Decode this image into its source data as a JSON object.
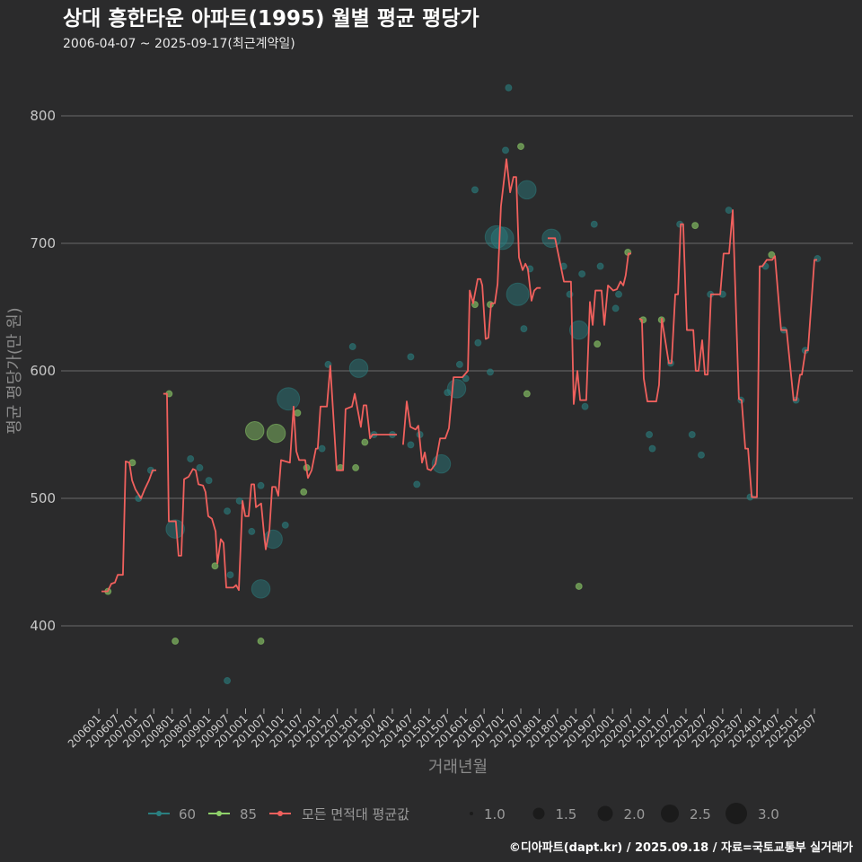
{
  "chart_data": {
    "type": "line",
    "title": "상대 흥한타운 아파트(1995) 월별 평균 평당가",
    "subtitle": "2006-04-07 ~ 2025-09-17(최근계약일)",
    "xlabel": "거래년월",
    "ylabel": "평균 평당가(만 원)",
    "x_unit": "months since 2006-01",
    "ylim": [
      335,
      835
    ],
    "yticks": [
      400,
      500,
      600,
      700,
      800
    ],
    "xticks": [
      "200601",
      "200607",
      "200701",
      "200707",
      "200801",
      "200807",
      "200901",
      "200907",
      "201001",
      "201007",
      "201101",
      "201107",
      "201201",
      "201207",
      "201301",
      "201307",
      "201401",
      "201407",
      "201501",
      "201507",
      "201601",
      "201607",
      "201701",
      "201707",
      "201801",
      "201807",
      "201901",
      "201907",
      "202001",
      "202007",
      "202101",
      "202107",
      "202201",
      "202207",
      "202301",
      "202307",
      "202401",
      "202407",
      "202501",
      "202507"
    ],
    "grid": true,
    "legend": {
      "position": "bottom",
      "series": [
        {
          "label": "60",
          "color": "#2a7f80"
        },
        {
          "label": "85",
          "color": "#8fd16a"
        },
        {
          "label": "모든 면적대 평균값",
          "color": "#f0605d"
        }
      ],
      "sizes": [
        {
          "label": "1.0",
          "value": 1.0
        },
        {
          "label": "1.5",
          "value": 1.5
        },
        {
          "label": "2.0",
          "value": 2.0
        },
        {
          "label": "2.5",
          "value": 2.5
        },
        {
          "label": "3.0",
          "value": 3.0
        }
      ]
    },
    "average_line": [
      [
        [
          0.9,
          427
        ],
        [
          2.9,
          427
        ],
        [
          4.1,
          433
        ],
        [
          5.3,
          434
        ],
        [
          6.2,
          440
        ],
        [
          7.9,
          440
        ],
        [
          8.8,
          529
        ],
        [
          10,
          528
        ],
        [
          10.9,
          514
        ],
        [
          12,
          507
        ],
        [
          13.8,
          500
        ],
        [
          15,
          507
        ],
        [
          16.4,
          514
        ],
        [
          17.6,
          522
        ],
        [
          18.8,
          522
        ]
      ],
      [
        [
          21.1,
          582
        ],
        [
          22.3,
          582
        ],
        [
          22.9,
          482
        ],
        [
          25.2,
          482
        ],
        [
          26.1,
          455
        ],
        [
          27,
          455
        ],
        [
          27.9,
          515
        ],
        [
          29.4,
          517
        ],
        [
          30.8,
          523
        ],
        [
          31.7,
          522
        ],
        [
          32.6,
          511
        ],
        [
          34.1,
          510
        ],
        [
          34.9,
          505
        ],
        [
          35.8,
          486
        ],
        [
          37,
          484
        ],
        [
          38.2,
          474
        ],
        [
          38.8,
          449
        ],
        [
          39.9,
          468
        ],
        [
          40.8,
          465
        ],
        [
          41.7,
          430
        ],
        [
          44,
          430
        ],
        [
          44.9,
          432
        ],
        [
          45.8,
          428
        ],
        [
          47,
          498
        ],
        [
          47.9,
          486
        ],
        [
          49,
          486
        ],
        [
          49.9,
          511
        ],
        [
          50.8,
          511
        ],
        [
          51.4,
          493
        ],
        [
          53.1,
          496
        ],
        [
          54,
          473
        ],
        [
          54.6,
          460
        ],
        [
          55.8,
          475
        ],
        [
          56.7,
          509
        ],
        [
          57.8,
          509
        ],
        [
          58.7,
          502
        ],
        [
          59.6,
          530
        ],
        [
          62.5,
          528
        ],
        [
          63.7,
          572
        ],
        [
          64.6,
          537
        ],
        [
          65.5,
          530
        ],
        [
          67.5,
          530
        ],
        [
          68.4,
          516
        ],
        [
          69.6,
          522
        ],
        [
          71,
          539
        ],
        [
          71.6,
          539
        ],
        [
          72.5,
          572
        ],
        [
          74.6,
          572
        ],
        [
          75.7,
          604
        ],
        [
          77.8,
          522
        ],
        [
          79.9,
          522
        ],
        [
          80.7,
          570
        ],
        [
          82.8,
          572
        ],
        [
          83.7,
          582
        ],
        [
          85.7,
          556
        ],
        [
          86.6,
          573
        ],
        [
          87.5,
          573
        ],
        [
          88.7,
          547
        ],
        [
          89.5,
          550
        ],
        [
          97.5,
          550
        ]
      ],
      [
        [
          99.5,
          542
        ],
        [
          100.7,
          576
        ],
        [
          101.9,
          556
        ],
        [
          103.6,
          554
        ],
        [
          104.5,
          557
        ],
        [
          105.7,
          528
        ],
        [
          106.6,
          536
        ],
        [
          107.5,
          523
        ],
        [
          108.6,
          522
        ],
        [
          110.1,
          527
        ],
        [
          111.6,
          547
        ],
        [
          113.3,
          547
        ],
        [
          114.5,
          555
        ],
        [
          116,
          595
        ],
        [
          118.9,
          595
        ],
        [
          120.7,
          600
        ],
        [
          121.3,
          663
        ],
        [
          122.4,
          653
        ],
        [
          123.9,
          672
        ],
        [
          124.8,
          672
        ],
        [
          125.4,
          667
        ],
        [
          126.5,
          625
        ],
        [
          127.4,
          626
        ],
        [
          128.3,
          653
        ],
        [
          129.5,
          653
        ],
        [
          130.4,
          668
        ],
        [
          131.5,
          729
        ],
        [
          133.3,
          766
        ],
        [
          134.5,
          740
        ],
        [
          135.6,
          752
        ],
        [
          136.5,
          752
        ],
        [
          137.4,
          689
        ],
        [
          138.6,
          679
        ],
        [
          139.5,
          684
        ],
        [
          140.3,
          680
        ],
        [
          141.5,
          655
        ],
        [
          142.4,
          663
        ],
        [
          143.3,
          665
        ],
        [
          144.5,
          665
        ]
      ],
      [
        [
          146.8,
          704
        ],
        [
          149.2,
          704
        ],
        [
          152.1,
          670
        ],
        [
          154.4,
          670
        ],
        [
          155.3,
          574
        ],
        [
          156.5,
          600
        ],
        [
          157.4,
          577
        ],
        [
          159.4,
          577
        ],
        [
          160.6,
          654
        ],
        [
          161.5,
          636
        ],
        [
          162.4,
          663
        ],
        [
          164.4,
          663
        ],
        [
          165.3,
          636
        ],
        [
          166.5,
          667
        ],
        [
          168.2,
          663
        ],
        [
          169.4,
          664
        ],
        [
          170.6,
          670
        ],
        [
          171.5,
          667
        ],
        [
          172.3,
          675
        ],
        [
          173.2,
          692
        ],
        [
          174.1,
          692
        ]
      ],
      [
        [
          176.7,
          641
        ],
        [
          177.6,
          640
        ],
        [
          178.2,
          594
        ],
        [
          179.4,
          576
        ],
        [
          182.3,
          576
        ],
        [
          183.2,
          589
        ],
        [
          184.1,
          641
        ],
        [
          186.4,
          606
        ],
        [
          187.3,
          606
        ],
        [
          188.5,
          660
        ],
        [
          189.4,
          660
        ],
        [
          190.3,
          715
        ],
        [
          191.1,
          715
        ],
        [
          192.3,
          632
        ],
        [
          194.4,
          632
        ],
        [
          195.2,
          600
        ],
        [
          196.1,
          600
        ],
        [
          197.3,
          624
        ],
        [
          198.2,
          597
        ],
        [
          199.1,
          597
        ],
        [
          200.2,
          660
        ],
        [
          203.2,
          660
        ],
        [
          204.3,
          692
        ],
        [
          206.1,
          692
        ],
        [
          207.3,
          726
        ],
        [
          209.3,
          578
        ],
        [
          210.2,
          577
        ],
        [
          211.4,
          539
        ],
        [
          212.3,
          539
        ],
        [
          213.5,
          501
        ],
        [
          215.2,
          501
        ],
        [
          216.1,
          682
        ],
        [
          217,
          682
        ],
        [
          218.4,
          687
        ],
        [
          220.2,
          687
        ],
        [
          221.1,
          690
        ],
        [
          223.1,
          632
        ],
        [
          224.9,
          632
        ],
        [
          227.2,
          577
        ],
        [
          228.1,
          577
        ],
        [
          229.3,
          597
        ],
        [
          229.9,
          597
        ],
        [
          231.1,
          616
        ],
        [
          231.9,
          616
        ],
        [
          234,
          687
        ],
        [
          234.9,
          687
        ]
      ]
    ],
    "points": [
      [
        3,
        427,
        1,
        "85"
      ],
      [
        11,
        528,
        1,
        "85"
      ],
      [
        13,
        500,
        1,
        "60"
      ],
      [
        17,
        522,
        1,
        "60"
      ],
      [
        23,
        582,
        1,
        "85"
      ],
      [
        25,
        476,
        2.5,
        "60"
      ],
      [
        25,
        388,
        1,
        "85"
      ],
      [
        30,
        531,
        1,
        "60"
      ],
      [
        33,
        524,
        1,
        "60"
      ],
      [
        36,
        514,
        1,
        "60"
      ],
      [
        38,
        447,
        1,
        "85"
      ],
      [
        42,
        490,
        1,
        "60"
      ],
      [
        42,
        357,
        1,
        "60"
      ],
      [
        43,
        440,
        1,
        "60"
      ],
      [
        46,
        498,
        1,
        "60"
      ],
      [
        50,
        474,
        1,
        "60"
      ],
      [
        51,
        553,
        2.5,
        "85"
      ],
      [
        53,
        429,
        2.5,
        "60"
      ],
      [
        53,
        388,
        1,
        "85"
      ],
      [
        53,
        510,
        1,
        "60"
      ],
      [
        57,
        468,
        2.5,
        "60"
      ],
      [
        58,
        551,
        2.5,
        "85"
      ],
      [
        61,
        479,
        1,
        "60"
      ],
      [
        62,
        578,
        3,
        "60"
      ],
      [
        65,
        567,
        1,
        "85"
      ],
      [
        67,
        505,
        1,
        "85"
      ],
      [
        68,
        524,
        1,
        "85"
      ],
      [
        73,
        539,
        1,
        "60"
      ],
      [
        75,
        605,
        1,
        "60"
      ],
      [
        79,
        524,
        1,
        "85"
      ],
      [
        83,
        619,
        1,
        "60"
      ],
      [
        84,
        524,
        1,
        "85"
      ],
      [
        85,
        602,
        2.5,
        "60"
      ],
      [
        87,
        544,
        1,
        "85"
      ],
      [
        90,
        550,
        1,
        "60"
      ],
      [
        96,
        550,
        1,
        "60"
      ],
      [
        102,
        542,
        1,
        "60"
      ],
      [
        102,
        611,
        1,
        "60"
      ],
      [
        104,
        511,
        1,
        "60"
      ],
      [
        105,
        550,
        1,
        "60"
      ],
      [
        112,
        527,
        2.5,
        "60"
      ],
      [
        114,
        583,
        1,
        "60"
      ],
      [
        118,
        605,
        1,
        "60"
      ],
      [
        117,
        586,
        2.5,
        "60"
      ],
      [
        120,
        594,
        1,
        "60"
      ],
      [
        123,
        742,
        1,
        "60"
      ],
      [
        123,
        652,
        1,
        "85"
      ],
      [
        124,
        622,
        1,
        "60"
      ],
      [
        128,
        652,
        1,
        "85"
      ],
      [
        128,
        599,
        1,
        "60"
      ],
      [
        130,
        705,
        3,
        "60"
      ],
      [
        132,
        704,
        3,
        "60"
      ],
      [
        134,
        822,
        1,
        "60"
      ],
      [
        133,
        773,
        1,
        "60"
      ],
      [
        138,
        776,
        1,
        "85"
      ],
      [
        137,
        660,
        3,
        "60"
      ],
      [
        140,
        742,
        2.5,
        "60"
      ],
      [
        139,
        633,
        1,
        "60"
      ],
      [
        140,
        582,
        1,
        "85"
      ],
      [
        141,
        680,
        1,
        "60"
      ],
      [
        148,
        704,
        2.5,
        "60"
      ],
      [
        152,
        682,
        1,
        "60"
      ],
      [
        154,
        660,
        1,
        "60"
      ],
      [
        157,
        632,
        2.5,
        "60"
      ],
      [
        157,
        431,
        1,
        "85"
      ],
      [
        158,
        676,
        1,
        "60"
      ],
      [
        159,
        572,
        1,
        "60"
      ],
      [
        162,
        715,
        1,
        "60"
      ],
      [
        163,
        621,
        1,
        "85"
      ],
      [
        164,
        682,
        1,
        "60"
      ],
      [
        169,
        649,
        1,
        "60"
      ],
      [
        170,
        660,
        1,
        "60"
      ],
      [
        173,
        693,
        1,
        "85"
      ],
      [
        178,
        640,
        1,
        "85"
      ],
      [
        180,
        550,
        1,
        "60"
      ],
      [
        181,
        539,
        1,
        "60"
      ],
      [
        184,
        640,
        1,
        "85"
      ],
      [
        187,
        606,
        1,
        "60"
      ],
      [
        190,
        715,
        1,
        "60"
      ],
      [
        195,
        714,
        1,
        "85"
      ],
      [
        194,
        550,
        1,
        "60"
      ],
      [
        197,
        534,
        1,
        "60"
      ],
      [
        200,
        660,
        1,
        "60"
      ],
      [
        204,
        660,
        1,
        "60"
      ],
      [
        206,
        726,
        1,
        "60"
      ],
      [
        210,
        577,
        1,
        "60"
      ],
      [
        213,
        501,
        1,
        "60"
      ],
      [
        218,
        682,
        1,
        "60"
      ],
      [
        220,
        691,
        1,
        "85"
      ],
      [
        224,
        632,
        1,
        "60"
      ],
      [
        228,
        577,
        1,
        "60"
      ],
      [
        231,
        616,
        1,
        "60"
      ],
      [
        235,
        688,
        1,
        "60"
      ]
    ]
  },
  "footer": {
    "credit": "©디아파트(dapt.kr) / 2025.09.18 / 자료=국토교통부 실거래가"
  }
}
